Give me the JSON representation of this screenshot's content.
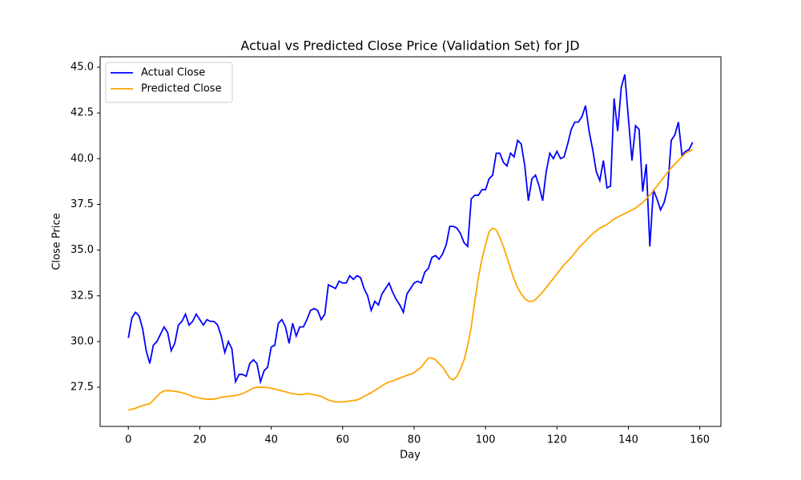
{
  "chart_data": {
    "type": "line",
    "title": "Actual vs Predicted Close Price (Validation Set) for JD",
    "x_label": "Day",
    "y_label": "Close Price",
    "x": [
      0,
      1,
      2,
      3,
      4,
      5,
      6,
      7,
      8,
      9,
      10,
      11,
      12,
      13,
      14,
      15,
      16,
      17,
      18,
      19,
      20,
      21,
      22,
      23,
      24,
      25,
      26,
      27,
      28,
      29,
      30,
      31,
      32,
      33,
      34,
      35,
      36,
      37,
      38,
      39,
      40,
      41,
      42,
      43,
      44,
      45,
      46,
      47,
      48,
      49,
      50,
      51,
      52,
      53,
      54,
      55,
      56,
      57,
      58,
      59,
      60,
      61,
      62,
      63,
      64,
      65,
      66,
      67,
      68,
      69,
      70,
      71,
      72,
      73,
      74,
      75,
      76,
      77,
      78,
      79,
      80,
      81,
      82,
      83,
      84,
      85,
      86,
      87,
      88,
      89,
      90,
      91,
      92,
      93,
      94,
      95,
      96,
      97,
      98,
      99,
      100,
      101,
      102,
      103,
      104,
      105,
      106,
      107,
      108,
      109,
      110,
      111,
      112,
      113,
      114,
      115,
      116,
      117,
      118,
      119,
      120,
      121,
      122,
      123,
      124,
      125,
      126,
      127,
      128,
      129,
      130,
      131,
      132,
      133,
      134,
      135,
      136,
      137,
      138,
      139,
      140,
      141,
      142,
      143,
      144,
      145,
      146,
      147,
      148,
      149,
      150,
      151,
      152,
      153,
      154,
      155,
      156,
      157,
      158
    ],
    "series": [
      {
        "name": "Actual Close",
        "color": "#0000ff",
        "values": [
          30.2,
          31.3,
          31.6,
          31.4,
          30.7,
          29.5,
          28.8,
          29.8,
          30.0,
          30.4,
          30.8,
          30.5,
          29.5,
          29.9,
          30.9,
          31.1,
          31.5,
          30.9,
          31.1,
          31.5,
          31.2,
          30.9,
          31.2,
          31.1,
          31.1,
          30.9,
          30.3,
          29.4,
          30.0,
          29.6,
          27.8,
          28.2,
          28.2,
          28.1,
          28.8,
          29.0,
          28.8,
          27.8,
          28.4,
          28.6,
          29.7,
          29.8,
          31.0,
          31.2,
          30.8,
          29.9,
          31.0,
          30.3,
          30.8,
          30.8,
          31.2,
          31.7,
          31.8,
          31.7,
          31.2,
          31.5,
          33.1,
          33.0,
          32.9,
          33.3,
          33.2,
          33.2,
          33.6,
          33.4,
          33.6,
          33.5,
          32.9,
          32.5,
          31.7,
          32.2,
          32.0,
          32.6,
          32.9,
          33.2,
          32.7,
          32.3,
          32.0,
          31.6,
          32.6,
          32.9,
          33.2,
          33.3,
          33.2,
          33.8,
          34.0,
          34.6,
          34.7,
          34.5,
          34.8,
          35.3,
          36.3,
          36.3,
          36.2,
          35.9,
          35.4,
          35.2,
          37.8,
          38.0,
          38.0,
          38.3,
          38.3,
          38.9,
          39.1,
          40.3,
          40.3,
          39.8,
          39.6,
          40.3,
          40.1,
          41.0,
          40.8,
          39.6,
          37.7,
          38.9,
          39.1,
          38.5,
          37.7,
          39.3,
          40.3,
          40.0,
          40.4,
          40.0,
          40.1,
          40.8,
          41.6,
          42.0,
          42.0,
          42.3,
          42.9,
          41.5,
          40.5,
          39.3,
          38.8,
          39.9,
          38.4,
          38.5,
          43.3,
          41.5,
          43.9,
          44.6,
          42.2,
          39.9,
          41.8,
          41.6,
          38.2,
          39.7,
          35.2,
          38.3,
          37.8,
          37.2,
          37.6,
          38.4,
          41.0,
          41.3,
          42.0,
          40.2,
          40.4,
          40.5,
          40.9
        ]
      },
      {
        "name": "Predicted Close",
        "color": "#ffa500",
        "values": [
          26.25,
          26.3,
          26.35,
          26.43,
          26.5,
          26.55,
          26.6,
          26.8,
          27.0,
          27.2,
          27.3,
          27.32,
          27.3,
          27.28,
          27.25,
          27.2,
          27.15,
          27.08,
          27.0,
          26.95,
          26.9,
          26.87,
          26.85,
          26.85,
          26.85,
          26.9,
          26.95,
          26.98,
          27.0,
          27.03,
          27.05,
          27.1,
          27.15,
          27.25,
          27.35,
          27.45,
          27.5,
          27.5,
          27.5,
          27.48,
          27.45,
          27.4,
          27.35,
          27.3,
          27.25,
          27.2,
          27.15,
          27.12,
          27.1,
          27.12,
          27.15,
          27.13,
          27.1,
          27.05,
          27.0,
          26.9,
          26.8,
          26.75,
          26.7,
          26.7,
          26.7,
          26.72,
          26.75,
          26.78,
          26.8,
          26.9,
          27.0,
          27.1,
          27.2,
          27.33,
          27.45,
          27.58,
          27.7,
          27.78,
          27.85,
          27.93,
          28.0,
          28.08,
          28.15,
          28.22,
          28.3,
          28.45,
          28.6,
          28.85,
          29.1,
          29.1,
          29.0,
          28.8,
          28.6,
          28.3,
          28.0,
          27.9,
          28.1,
          28.5,
          29.0,
          29.8,
          30.8,
          32.2,
          33.5,
          34.5,
          35.3,
          36.0,
          36.2,
          36.1,
          35.7,
          35.2,
          34.6,
          34.0,
          33.4,
          32.95,
          32.6,
          32.35,
          32.2,
          32.2,
          32.3,
          32.5,
          32.7,
          32.95,
          33.2,
          33.45,
          33.7,
          33.95,
          34.2,
          34.4,
          34.6,
          34.85,
          35.1,
          35.3,
          35.5,
          35.7,
          35.9,
          36.05,
          36.2,
          36.3,
          36.4,
          36.55,
          36.7,
          36.8,
          36.9,
          37.0,
          37.1,
          37.2,
          37.3,
          37.45,
          37.6,
          37.8,
          38.0,
          38.25,
          38.5,
          38.75,
          39.0,
          39.25,
          39.5,
          39.7,
          39.9,
          40.1,
          40.3,
          40.4,
          40.5
        ]
      }
    ],
    "xlim": [
      -7.9,
      165.9
    ],
    "xticks": [
      0,
      20,
      40,
      60,
      80,
      100,
      120,
      140,
      160
    ],
    "ylim": [
      25.36,
      45.57
    ],
    "yticks": [
      27.5,
      {
        "value": 30,
        "label": "30.0"
      },
      32.5,
      {
        "value": 35,
        "label": "35.0"
      },
      37.5,
      {
        "value": 40,
        "label": "40.0"
      },
      42.5,
      {
        "value": 45,
        "label": "45.0"
      }
    ],
    "legend": "upper left"
  }
}
